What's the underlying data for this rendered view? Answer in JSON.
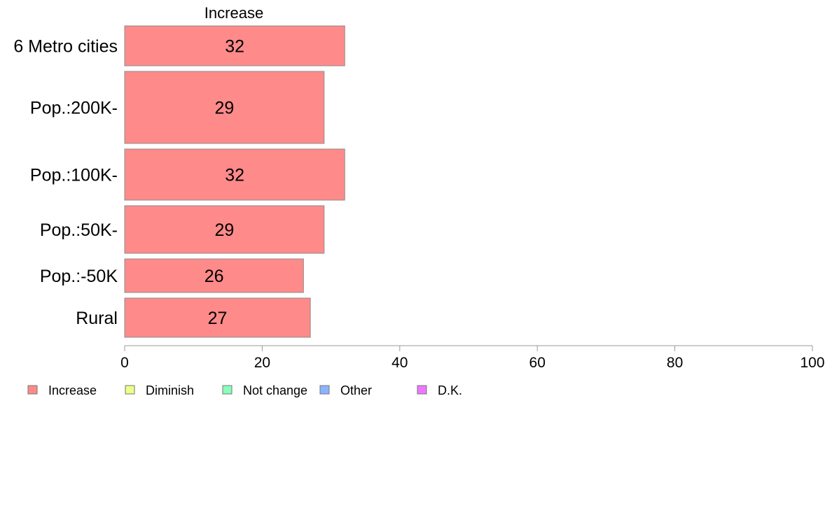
{
  "chart_data": {
    "type": "bar",
    "orientation": "horizontal",
    "categories": [
      "6 Metro cities",
      "Pop.:200K-",
      "Pop.:100K-",
      "Pop.:50K-",
      "Pop.:-50K",
      "Rural"
    ],
    "series": [
      {
        "name": "Increase",
        "values": [
          32,
          29,
          32,
          29,
          26,
          27
        ],
        "color": "#ff8a8a"
      }
    ],
    "series_title": "Increase",
    "xlim": [
      0,
      100
    ],
    "x_ticks": [
      0,
      20,
      40,
      60,
      80,
      100
    ],
    "grid": false,
    "legend_position": "bottom-left",
    "legend": [
      {
        "label": "Increase",
        "color": "#ff8a8a"
      },
      {
        "label": "Diminish",
        "color": "#eeff88"
      },
      {
        "label": "Not change",
        "color": "#88ffbb"
      },
      {
        "label": "Other",
        "color": "#88b4ff"
      },
      {
        "label": "D.K.",
        "color": "#ee77ff"
      }
    ]
  }
}
